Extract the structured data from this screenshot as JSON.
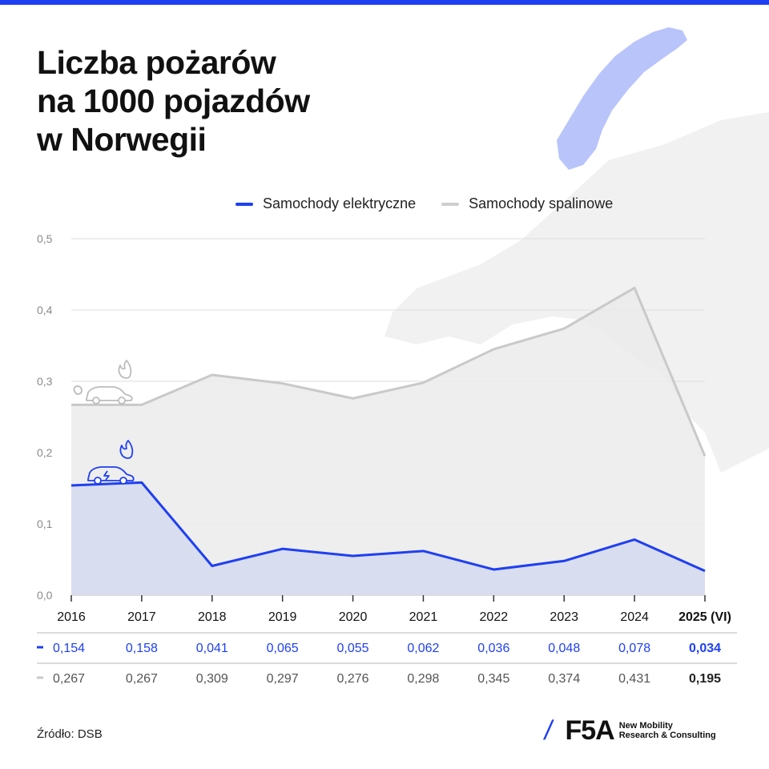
{
  "title_lines": [
    "Liczba pożarów",
    "na 1000 pojazdów",
    "w Norwegii"
  ],
  "legend": [
    {
      "label": "Samochody elektryczne",
      "color": "#1f3ff2"
    },
    {
      "label": "Samochody spalinowe",
      "color": "#cfcfcf"
    }
  ],
  "source": "Źródło: DSB",
  "logo": {
    "mark": "F5A",
    "tagline_1": "New Mobility",
    "tagline_2": "Research & Consulting"
  },
  "colors": {
    "accent": "#1f3ff2",
    "ice": "#c9c9c9",
    "ev_fill": "#d6dbef",
    "ice_fill": "#ebebeb",
    "map": "#f1f1f2",
    "norway": "#b9c4fb"
  },
  "icons": [
    "ice-car-fire-icon",
    "ev-car-fire-icon",
    "norway-map",
    "europe-map-background"
  ],
  "chart_data": {
    "type": "area",
    "title": "Liczba pożarów na 1000 pojazdów w Norwegii",
    "x": [
      "2016",
      "2017",
      "2018",
      "2019",
      "2020",
      "2021",
      "2022",
      "2023",
      "2024",
      "2025 (VI)"
    ],
    "ylim": [
      0,
      0.5
    ],
    "yticks": [
      0,
      0.1,
      0.2,
      0.3,
      0.4,
      0.5
    ],
    "ytick_labels": [
      "0,0",
      "0,1",
      "0,2",
      "0,3",
      "0,4",
      "0,5"
    ],
    "grid": true,
    "legend_position": "top",
    "series": [
      {
        "name": "Samochody elektryczne",
        "values": [
          0.154,
          0.158,
          0.041,
          0.065,
          0.055,
          0.062,
          0.036,
          0.048,
          0.078,
          0.034
        ],
        "labels": [
          "0,154",
          "0,158",
          "0,041",
          "0,065",
          "0,055",
          "0,062",
          "0,036",
          "0,048",
          "0,078",
          "0,034"
        ]
      },
      {
        "name": "Samochody spalinowe",
        "values": [
          0.267,
          0.267,
          0.309,
          0.297,
          0.276,
          0.298,
          0.345,
          0.374,
          0.431,
          0.195
        ],
        "labels": [
          "0,267",
          "0,267",
          "0,309",
          "0,297",
          "0,276",
          "0,298",
          "0,345",
          "0,374",
          "0,431",
          "0,195"
        ]
      }
    ]
  }
}
